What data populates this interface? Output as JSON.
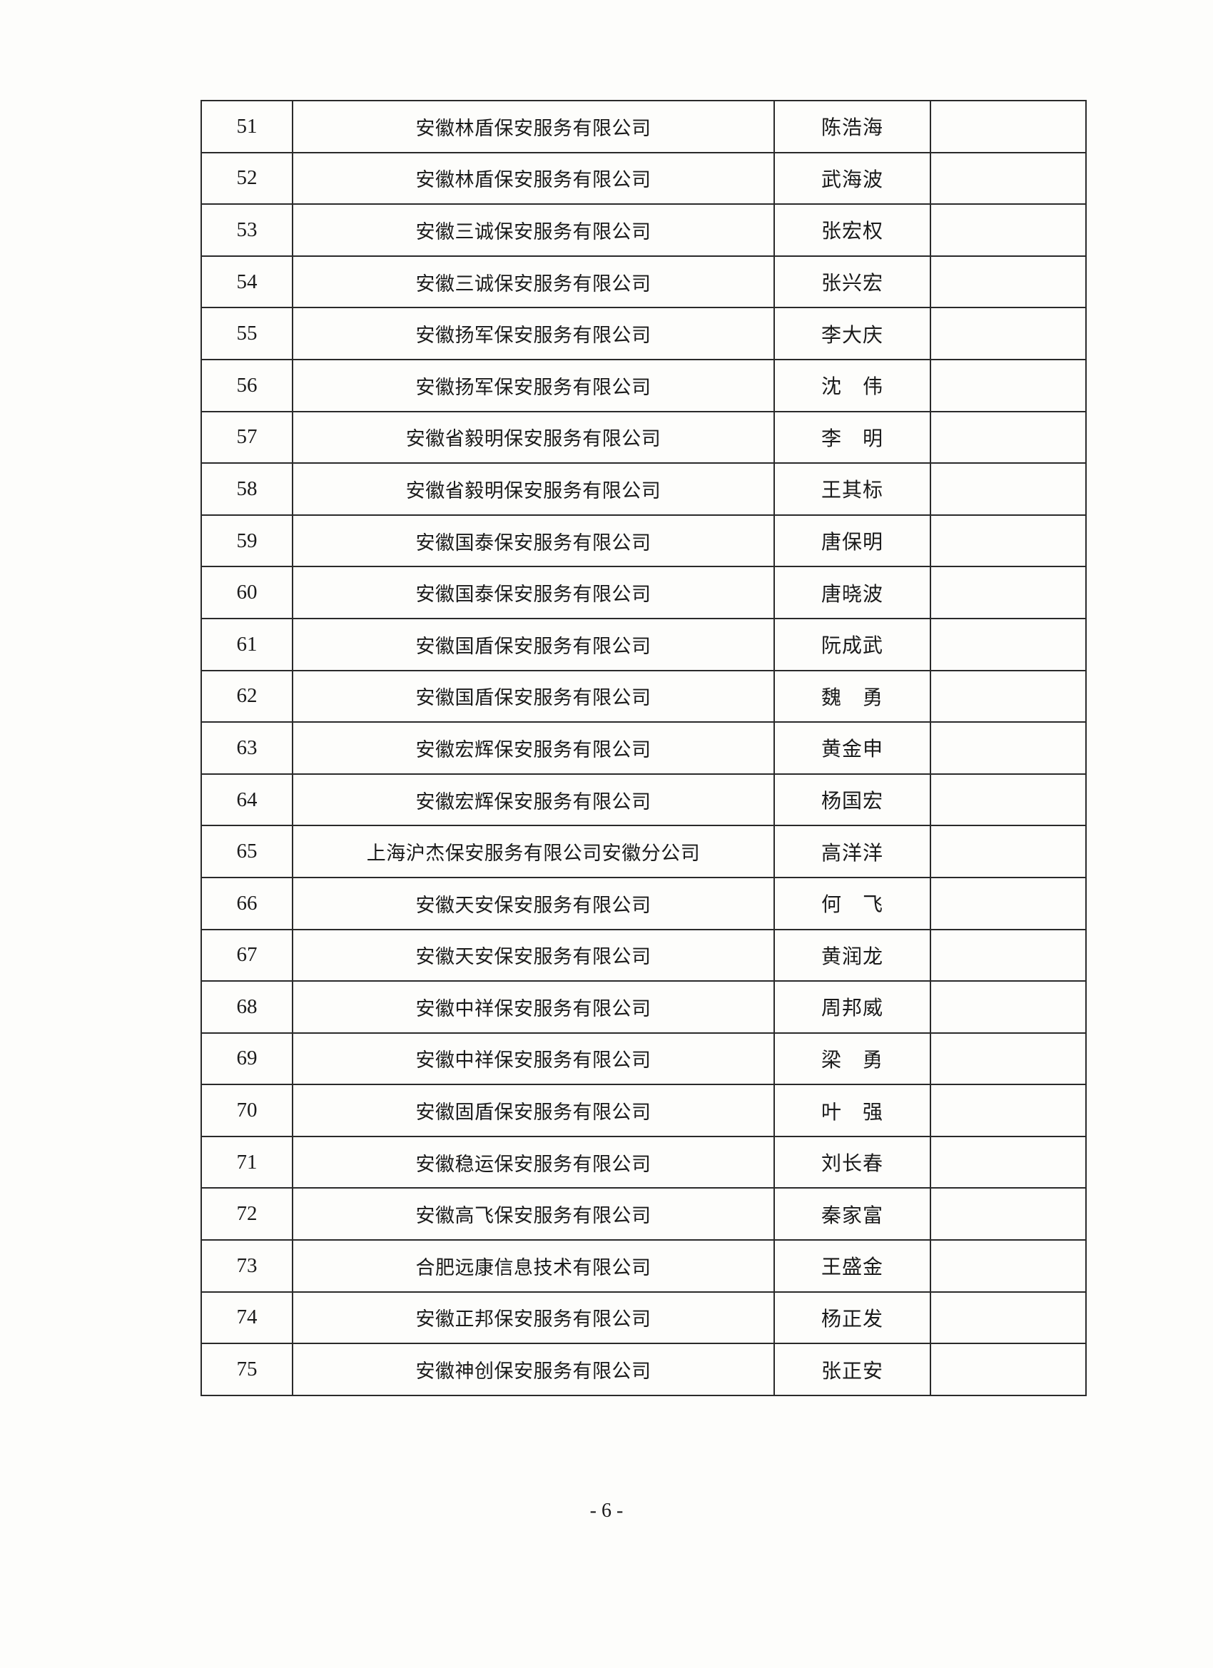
{
  "table": {
    "rows": [
      {
        "no": "51",
        "company": "安徽林盾保安服务有限公司",
        "person": "陈浩海"
      },
      {
        "no": "52",
        "company": "安徽林盾保安服务有限公司",
        "person": "武海波"
      },
      {
        "no": "53",
        "company": "安徽三诚保安服务有限公司",
        "person": "张宏权"
      },
      {
        "no": "54",
        "company": "安徽三诚保安服务有限公司",
        "person": "张兴宏"
      },
      {
        "no": "55",
        "company": "安徽扬军保安服务有限公司",
        "person": "李大庆"
      },
      {
        "no": "56",
        "company": "安徽扬军保安服务有限公司",
        "person": "沈　伟"
      },
      {
        "no": "57",
        "company": "安徽省毅明保安服务有限公司",
        "person": "李　明"
      },
      {
        "no": "58",
        "company": "安徽省毅明保安服务有限公司",
        "person": "王其标"
      },
      {
        "no": "59",
        "company": "安徽国泰保安服务有限公司",
        "person": "唐保明"
      },
      {
        "no": "60",
        "company": "安徽国泰保安服务有限公司",
        "person": "唐晓波"
      },
      {
        "no": "61",
        "company": "安徽国盾保安服务有限公司",
        "person": "阮成武"
      },
      {
        "no": "62",
        "company": "安徽国盾保安服务有限公司",
        "person": "魏　勇"
      },
      {
        "no": "63",
        "company": "安徽宏辉保安服务有限公司",
        "person": "黄金申"
      },
      {
        "no": "64",
        "company": "安徽宏辉保安服务有限公司",
        "person": "杨国宏"
      },
      {
        "no": "65",
        "company": "上海沪杰保安服务有限公司安徽分公司",
        "person": "高洋洋"
      },
      {
        "no": "66",
        "company": "安徽天安保安服务有限公司",
        "person": "何　飞"
      },
      {
        "no": "67",
        "company": "安徽天安保安服务有限公司",
        "person": "黄润龙"
      },
      {
        "no": "68",
        "company": "安徽中祥保安服务有限公司",
        "person": "周邦威"
      },
      {
        "no": "69",
        "company": "安徽中祥保安服务有限公司",
        "person": "梁　勇"
      },
      {
        "no": "70",
        "company": "安徽固盾保安服务有限公司",
        "person": "叶　强"
      },
      {
        "no": "71",
        "company": "安徽稳运保安服务有限公司",
        "person": "刘长春"
      },
      {
        "no": "72",
        "company": "安徽高飞保安服务有限公司",
        "person": "秦家富"
      },
      {
        "no": "73",
        "company": "合肥远康信息技术有限公司",
        "person": "王盛金"
      },
      {
        "no": "74",
        "company": "安徽正邦保安服务有限公司",
        "person": "杨正发"
      },
      {
        "no": "75",
        "company": "安徽神创保安服务有限公司",
        "person": "张正安"
      }
    ]
  },
  "footer": {
    "page_number": "- 6 -"
  }
}
